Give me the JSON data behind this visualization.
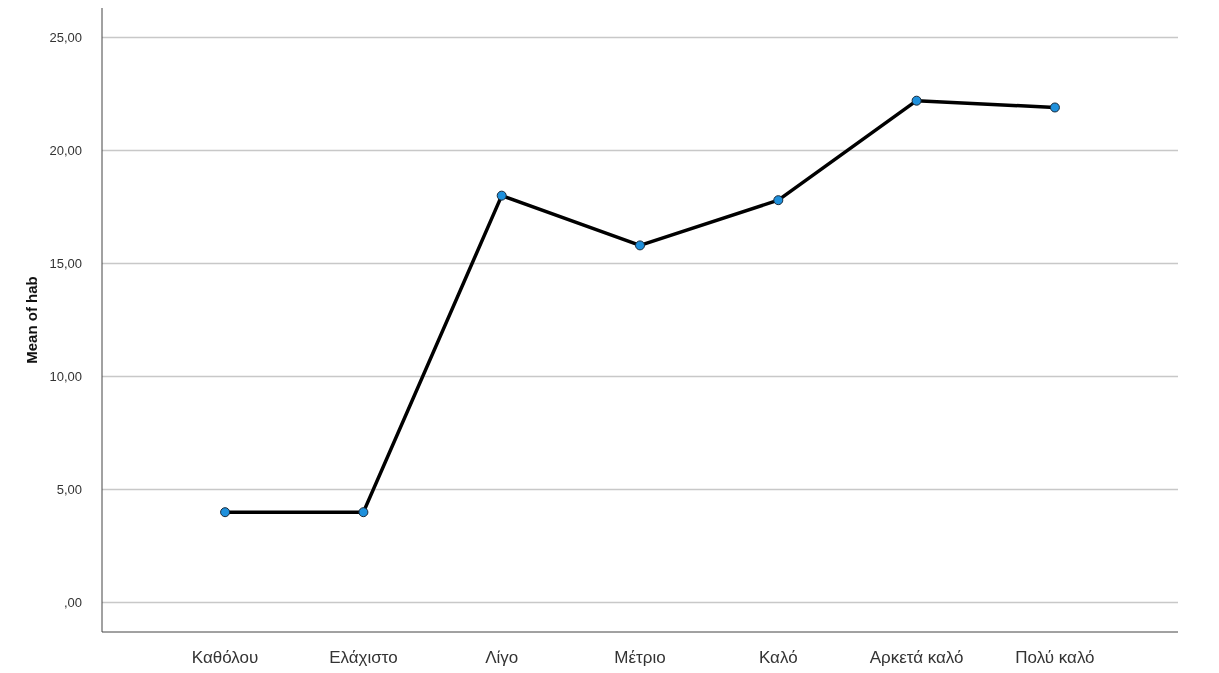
{
  "chart_data": {
    "type": "line",
    "ylabel": "Mean of hab",
    "categories": [
      "Καθόλου",
      "Ελάχιστο",
      "Λίγο",
      "Μέτριο",
      "Καλό",
      "Αρκετά καλό",
      "Πολύ καλό"
    ],
    "series": [
      {
        "color": "#000000",
        "values": [
          4.0,
          4.0,
          18.0,
          15.8,
          17.8,
          22.2,
          21.9
        ]
      }
    ],
    "ylim": [
      -1.3,
      26.3
    ],
    "yticks": [
      {
        "value": 0,
        "label": ",00"
      },
      {
        "value": 5,
        "label": "5,00"
      },
      {
        "value": 10,
        "label": "10,00"
      },
      {
        "value": 15,
        "label": "15,00"
      },
      {
        "value": 20,
        "label": "20,00"
      },
      {
        "value": 25,
        "label": "25,00"
      }
    ],
    "grid": "y",
    "marker": "circle",
    "line_style": "solid"
  }
}
